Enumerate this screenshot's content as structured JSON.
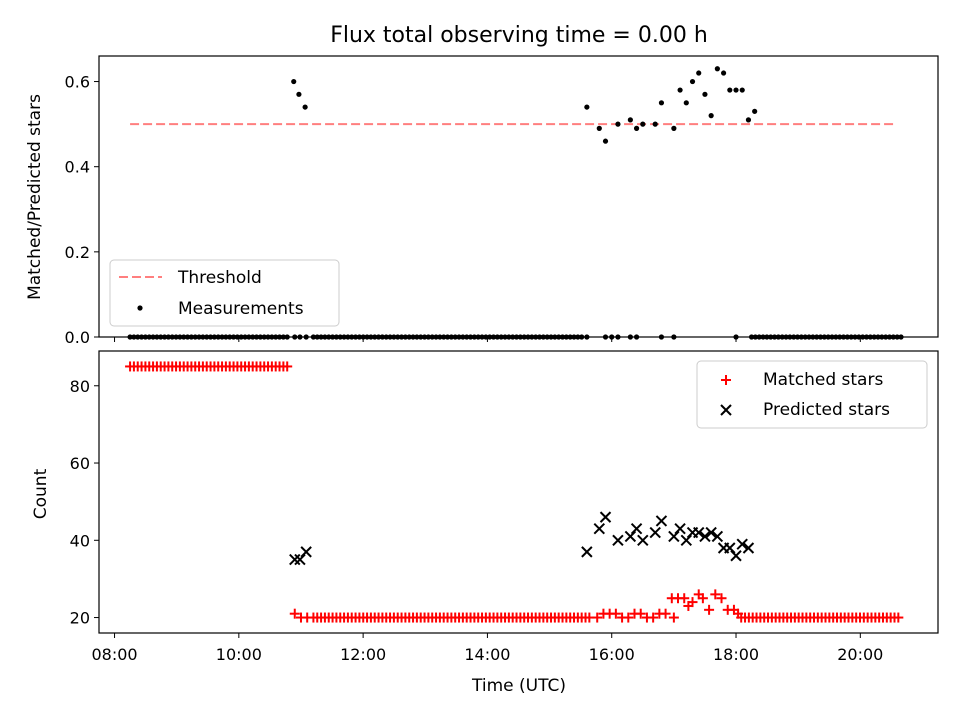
{
  "chart_data": [
    {
      "type": "scatter",
      "title": "Flux total observing time = 0.00 h",
      "xlabel": "",
      "ylabel": "Matched/Predicted stars",
      "xlim": [
        "07:45",
        "21:15"
      ],
      "ylim": [
        0,
        0.66
      ],
      "yticks": [
        0.0,
        0.2,
        0.4,
        0.6
      ],
      "ytick_labels": [
        "0.0",
        "0.2",
        "0.4",
        "0.6"
      ],
      "grid": false,
      "legend_position": "lower-left",
      "threshold": {
        "name": "Threshold",
        "value": 0.5,
        "x_range": [
          "08:15",
          "20:35"
        ],
        "color": "#ff7f7f",
        "style": "dashed"
      },
      "series": [
        {
          "name": "Measurements",
          "marker": "dot",
          "color": "#000000",
          "points": [
            [
              "10:53",
              0.6
            ],
            [
              "10:58",
              0.57
            ],
            [
              "11:04",
              0.54
            ],
            [
              "15:36",
              0.54
            ],
            [
              "15:48",
              0.49
            ],
            [
              "15:54",
              0.46
            ],
            [
              "16:06",
              0.5
            ],
            [
              "16:18",
              0.51
            ],
            [
              "16:24",
              0.49
            ],
            [
              "16:30",
              0.5
            ],
            [
              "16:42",
              0.5
            ],
            [
              "16:48",
              0.55
            ],
            [
              "17:00",
              0.49
            ],
            [
              "17:06",
              0.58
            ],
            [
              "17:12",
              0.55
            ],
            [
              "17:18",
              0.6
            ],
            [
              "17:24",
              0.62
            ],
            [
              "17:30",
              0.57
            ],
            [
              "17:36",
              0.52
            ],
            [
              "17:42",
              0.63
            ],
            [
              "17:48",
              0.62
            ],
            [
              "17:54",
              0.58
            ],
            [
              "18:00",
              0.58
            ],
            [
              "18:06",
              0.58
            ],
            [
              "18:12",
              0.51
            ],
            [
              "18:18",
              0.53
            ],
            [
              "10:54",
              0.0
            ],
            [
              "10:59",
              0.0
            ],
            [
              "11:05",
              0.0
            ],
            [
              "15:36",
              0.0
            ],
            [
              "15:54",
              0.0
            ],
            [
              "16:00",
              0.0
            ],
            [
              "16:18",
              0.0
            ],
            [
              "16:06",
              0.0
            ],
            [
              "16:24",
              0.0
            ],
            [
              "16:48",
              0.0
            ],
            [
              "17:00",
              0.0
            ],
            [
              "18:00",
              0.0
            ]
          ],
          "zero_runs": [
            {
              "start": "08:15",
              "end": "10:50",
              "step_min": 3.7
            },
            {
              "start": "11:12",
              "end": "15:33",
              "step_min": 3.7
            },
            {
              "start": "18:15",
              "end": "20:40",
              "step_min": 3.7
            }
          ]
        }
      ]
    },
    {
      "type": "scatter",
      "title": "",
      "xlabel": "Time (UTC)",
      "ylabel": "Count",
      "xlim": [
        "07:45",
        "21:15"
      ],
      "ylim": [
        16,
        89
      ],
      "xticks": [
        "08:00",
        "10:00",
        "12:00",
        "14:00",
        "16:00",
        "18:00",
        "20:00"
      ],
      "yticks": [
        20,
        40,
        60,
        80
      ],
      "ytick_labels": [
        "20",
        "40",
        "60",
        "80"
      ],
      "grid": false,
      "legend_position": "upper-right",
      "series": [
        {
          "name": "Matched stars",
          "marker": "plus",
          "color": "#ff0000",
          "runs": [
            {
              "start": "08:15",
              "end": "10:50",
              "value": 85,
              "step_min": 3.7
            },
            {
              "start": "11:12",
              "end": "15:40",
              "value": 20,
              "step_min": 3.7
            },
            {
              "start": "18:05",
              "end": "20:40",
              "value": 20,
              "step_min": 3.7
            }
          ],
          "points": [
            [
              "10:54",
              21
            ],
            [
              "11:00",
              20
            ],
            [
              "11:06",
              20
            ],
            [
              "15:46",
              20
            ],
            [
              "15:52",
              21
            ],
            [
              "15:58",
              21
            ],
            [
              "16:04",
              21
            ],
            [
              "16:10",
              20
            ],
            [
              "16:16",
              20
            ],
            [
              "16:22",
              21
            ],
            [
              "16:28",
              21
            ],
            [
              "16:34",
              20
            ],
            [
              "16:40",
              20
            ],
            [
              "16:46",
              21
            ],
            [
              "16:52",
              21
            ],
            [
              "16:58",
              25
            ],
            [
              "17:04",
              25
            ],
            [
              "17:00",
              20
            ],
            [
              "17:10",
              25
            ],
            [
              "17:14",
              23
            ],
            [
              "17:18",
              24
            ],
            [
              "17:24",
              26
            ],
            [
              "17:28",
              25
            ],
            [
              "17:34",
              22
            ],
            [
              "17:40",
              26
            ],
            [
              "17:46",
              25
            ],
            [
              "17:52",
              22
            ],
            [
              "17:58",
              22
            ],
            [
              "18:02",
              21
            ]
          ]
        },
        {
          "name": "Predicted stars",
          "marker": "x",
          "color": "#000000",
          "points": [
            [
              "10:54",
              35
            ],
            [
              "10:59",
              35
            ],
            [
              "11:05",
              37
            ],
            [
              "15:36",
              37
            ],
            [
              "15:48",
              43
            ],
            [
              "15:54",
              46
            ],
            [
              "16:06",
              40
            ],
            [
              "16:18",
              41
            ],
            [
              "16:24",
              43
            ],
            [
              "16:30",
              40
            ],
            [
              "16:42",
              42
            ],
            [
              "16:48",
              45
            ],
            [
              "17:00",
              41
            ],
            [
              "17:06",
              43
            ],
            [
              "17:12",
              40
            ],
            [
              "17:18",
              42
            ],
            [
              "17:24",
              42
            ],
            [
              "17:30",
              41
            ],
            [
              "17:36",
              42
            ],
            [
              "17:42",
              41
            ],
            [
              "17:48",
              38
            ],
            [
              "17:54",
              38
            ],
            [
              "18:00",
              36
            ],
            [
              "18:06",
              39
            ],
            [
              "18:12",
              38
            ]
          ]
        }
      ]
    }
  ]
}
